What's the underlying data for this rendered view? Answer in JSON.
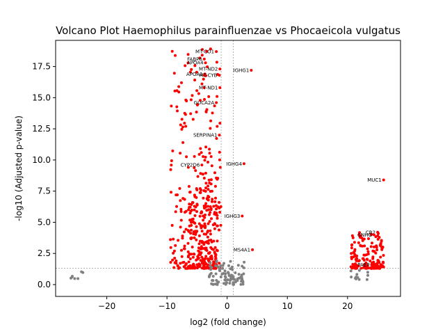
{
  "chart_data": {
    "type": "scatter",
    "title": "Volcano Plot Haemophilus parainfluenzae vs Phocaeicola vulgatus",
    "xlabel": "log2 (fold change)",
    "ylabel": "-log10 (Adjusted p-value)",
    "xlim": [
      -28.5,
      28.8
    ],
    "ylim": [
      -0.95,
      19.6
    ],
    "xticks": [
      -20,
      -10,
      0,
      10,
      20
    ],
    "yticks": [
      0.0,
      2.5,
      5.0,
      7.5,
      10.0,
      12.5,
      15.0,
      17.5
    ],
    "xtick_labels": [
      "−20",
      "−10",
      "0",
      "10",
      "20"
    ],
    "ytick_labels": [
      "0.0",
      "2.5",
      "5.0",
      "7.5",
      "10.0",
      "12.5",
      "15.0",
      "17.5"
    ],
    "thresholds": {
      "fold_change": [
        -1,
        1
      ],
      "neg_log10_p": 1.3
    },
    "grid": false,
    "colors": {
      "significant": "#ff0000",
      "not_significant": "#808080",
      "threshold_line": "#808080",
      "text": "#000000"
    },
    "labeled_points": [
      {
        "label": "MT-CO1",
        "x": -1.8,
        "y": 18.7
      },
      {
        "label": "FABP6",
        "x": -3.8,
        "y": 18.1
      },
      {
        "label": "APOA4",
        "x": -3.6,
        "y": 17.8
      },
      {
        "label": "MT-ND2",
        "x": -1.2,
        "y": 17.3
      },
      {
        "label": "APOA1",
        "x": -3.7,
        "y": 16.9
      },
      {
        "label": "MT-CYB",
        "x": -1.3,
        "y": 16.8
      },
      {
        "label": "IGHG1",
        "x": 4.0,
        "y": 17.2
      },
      {
        "label": "MT-ND1",
        "x": -1.2,
        "y": 15.8
      },
      {
        "label": "GUCA2A",
        "x": -1.8,
        "y": 14.6
      },
      {
        "label": "SERPINA1",
        "x": -1.3,
        "y": 12.0
      },
      {
        "label": "CYP2D6",
        "x": -4.2,
        "y": 9.6
      },
      {
        "label": "IGHG4",
        "x": 2.8,
        "y": 9.7
      },
      {
        "label": "IGHG3",
        "x": 2.5,
        "y": 5.5
      },
      {
        "label": "MS4A1",
        "x": 4.2,
        "y": 2.8
      },
      {
        "label": "MUC1",
        "x": 26.0,
        "y": 8.4
      },
      {
        "label": "CR2",
        "x": 25.0,
        "y": 4.2
      },
      {
        "label": "SNHG",
        "x": 24.4,
        "y": 4.0
      },
      {
        "label": "PAEP",
        "x": 24.0,
        "y": 1.6
      }
    ],
    "point_groups": [
      {
        "name": "left-cluster-significant",
        "status": "significant",
        "x_range": [
          -9.5,
          -1.0
        ],
        "y_range": [
          1.3,
          19.0
        ],
        "count": 240
      },
      {
        "name": "left-cluster-dense",
        "status": "significant",
        "x_range": [
          -6.5,
          -1.5
        ],
        "y_range": [
          1.3,
          9.0
        ],
        "count": 220
      },
      {
        "name": "center-not-significant",
        "status": "not_significant",
        "x_range": [
          -3.0,
          3.0
        ],
        "y_range": [
          0.0,
          2.0
        ],
        "count": 90
      },
      {
        "name": "right-cluster-not-significant",
        "status": "not_significant",
        "x_range": [
          20.0,
          23.5
        ],
        "y_range": [
          0.4,
          1.3
        ],
        "count": 12
      },
      {
        "name": "right-cluster-significant",
        "status": "significant",
        "x_range": [
          20.5,
          26.0
        ],
        "y_range": [
          1.3,
          4.2
        ],
        "count": 150
      },
      {
        "name": "far-left-outliers",
        "status": "not_significant",
        "x_range": [
          -26.0,
          -23.5
        ],
        "y_range": [
          0.4,
          1.3
        ],
        "count": 7
      }
    ]
  }
}
